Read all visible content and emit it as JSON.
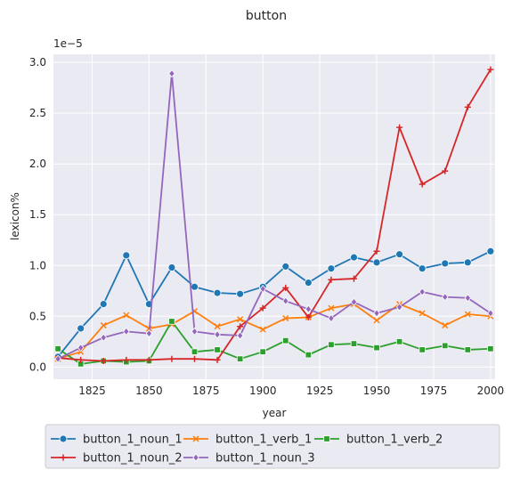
{
  "chart_data": {
    "type": "line",
    "title": "button",
    "xlabel": "year",
    "ylabel": "lexicon%",
    "y_scale_note": "1e−5",
    "x": [
      1810,
      1820,
      1830,
      1840,
      1850,
      1860,
      1870,
      1880,
      1890,
      1900,
      1910,
      1920,
      1930,
      1940,
      1950,
      1960,
      1970,
      1980,
      1990,
      2000
    ],
    "xlim": [
      1808,
      2002
    ],
    "ylim": [
      -0.12,
      3.08
    ],
    "x_ticks": [
      1825,
      1850,
      1875,
      1900,
      1925,
      1950,
      1975,
      2000
    ],
    "x_tick_labels": [
      "1825",
      "1850",
      "1875",
      "1900",
      "1925",
      "1950",
      "1975",
      "2000"
    ],
    "y_ticks": [
      0.0,
      0.5,
      1.0,
      1.5,
      2.0,
      2.5,
      3.0
    ],
    "y_tick_labels": [
      "0.0",
      "0.5",
      "1.0",
      "1.5",
      "2.0",
      "2.5",
      "3.0"
    ],
    "grid": true,
    "legend_position": "bottom, outside",
    "series": [
      {
        "name": "button_1_noun_1",
        "color": "#1f77b4",
        "marker": "circle",
        "values": [
          0.1,
          0.38,
          0.62,
          1.1,
          0.62,
          0.98,
          0.79,
          0.73,
          0.72,
          0.79,
          0.99,
          0.83,
          0.97,
          1.08,
          1.03,
          1.11,
          0.97,
          1.02,
          1.03,
          1.14
        ]
      },
      {
        "name": "button_1_verb_1",
        "color": "#ff7f0e",
        "marker": "x",
        "values": [
          0.08,
          0.15,
          0.41,
          0.51,
          0.38,
          0.42,
          0.55,
          0.4,
          0.47,
          0.37,
          0.48,
          0.49,
          0.58,
          0.62,
          0.46,
          0.62,
          0.53,
          0.41,
          0.52,
          0.5
        ]
      },
      {
        "name": "button_1_verb_2",
        "color": "#2ca02c",
        "marker": "square",
        "values": [
          0.18,
          0.03,
          0.06,
          0.05,
          0.06,
          0.45,
          0.15,
          0.17,
          0.08,
          0.15,
          0.26,
          0.12,
          0.22,
          0.23,
          0.19,
          0.25,
          0.17,
          0.21,
          0.17,
          0.18
        ]
      },
      {
        "name": "button_1_noun_2",
        "color": "#d62728",
        "marker": "plus",
        "values": [
          0.09,
          0.07,
          0.06,
          0.07,
          0.07,
          0.08,
          0.08,
          0.07,
          0.4,
          0.58,
          0.78,
          0.49,
          0.86,
          0.87,
          1.14,
          2.36,
          1.8,
          1.93,
          2.56,
          2.93
        ]
      },
      {
        "name": "button_1_noun_3",
        "color": "#9467bd",
        "marker": "diamond",
        "values": [
          0.08,
          0.19,
          0.29,
          0.35,
          0.33,
          2.89,
          0.35,
          0.32,
          0.31,
          0.77,
          0.65,
          0.57,
          0.48,
          0.64,
          0.53,
          0.59,
          0.74,
          0.69,
          0.68,
          0.53
        ]
      }
    ]
  }
}
